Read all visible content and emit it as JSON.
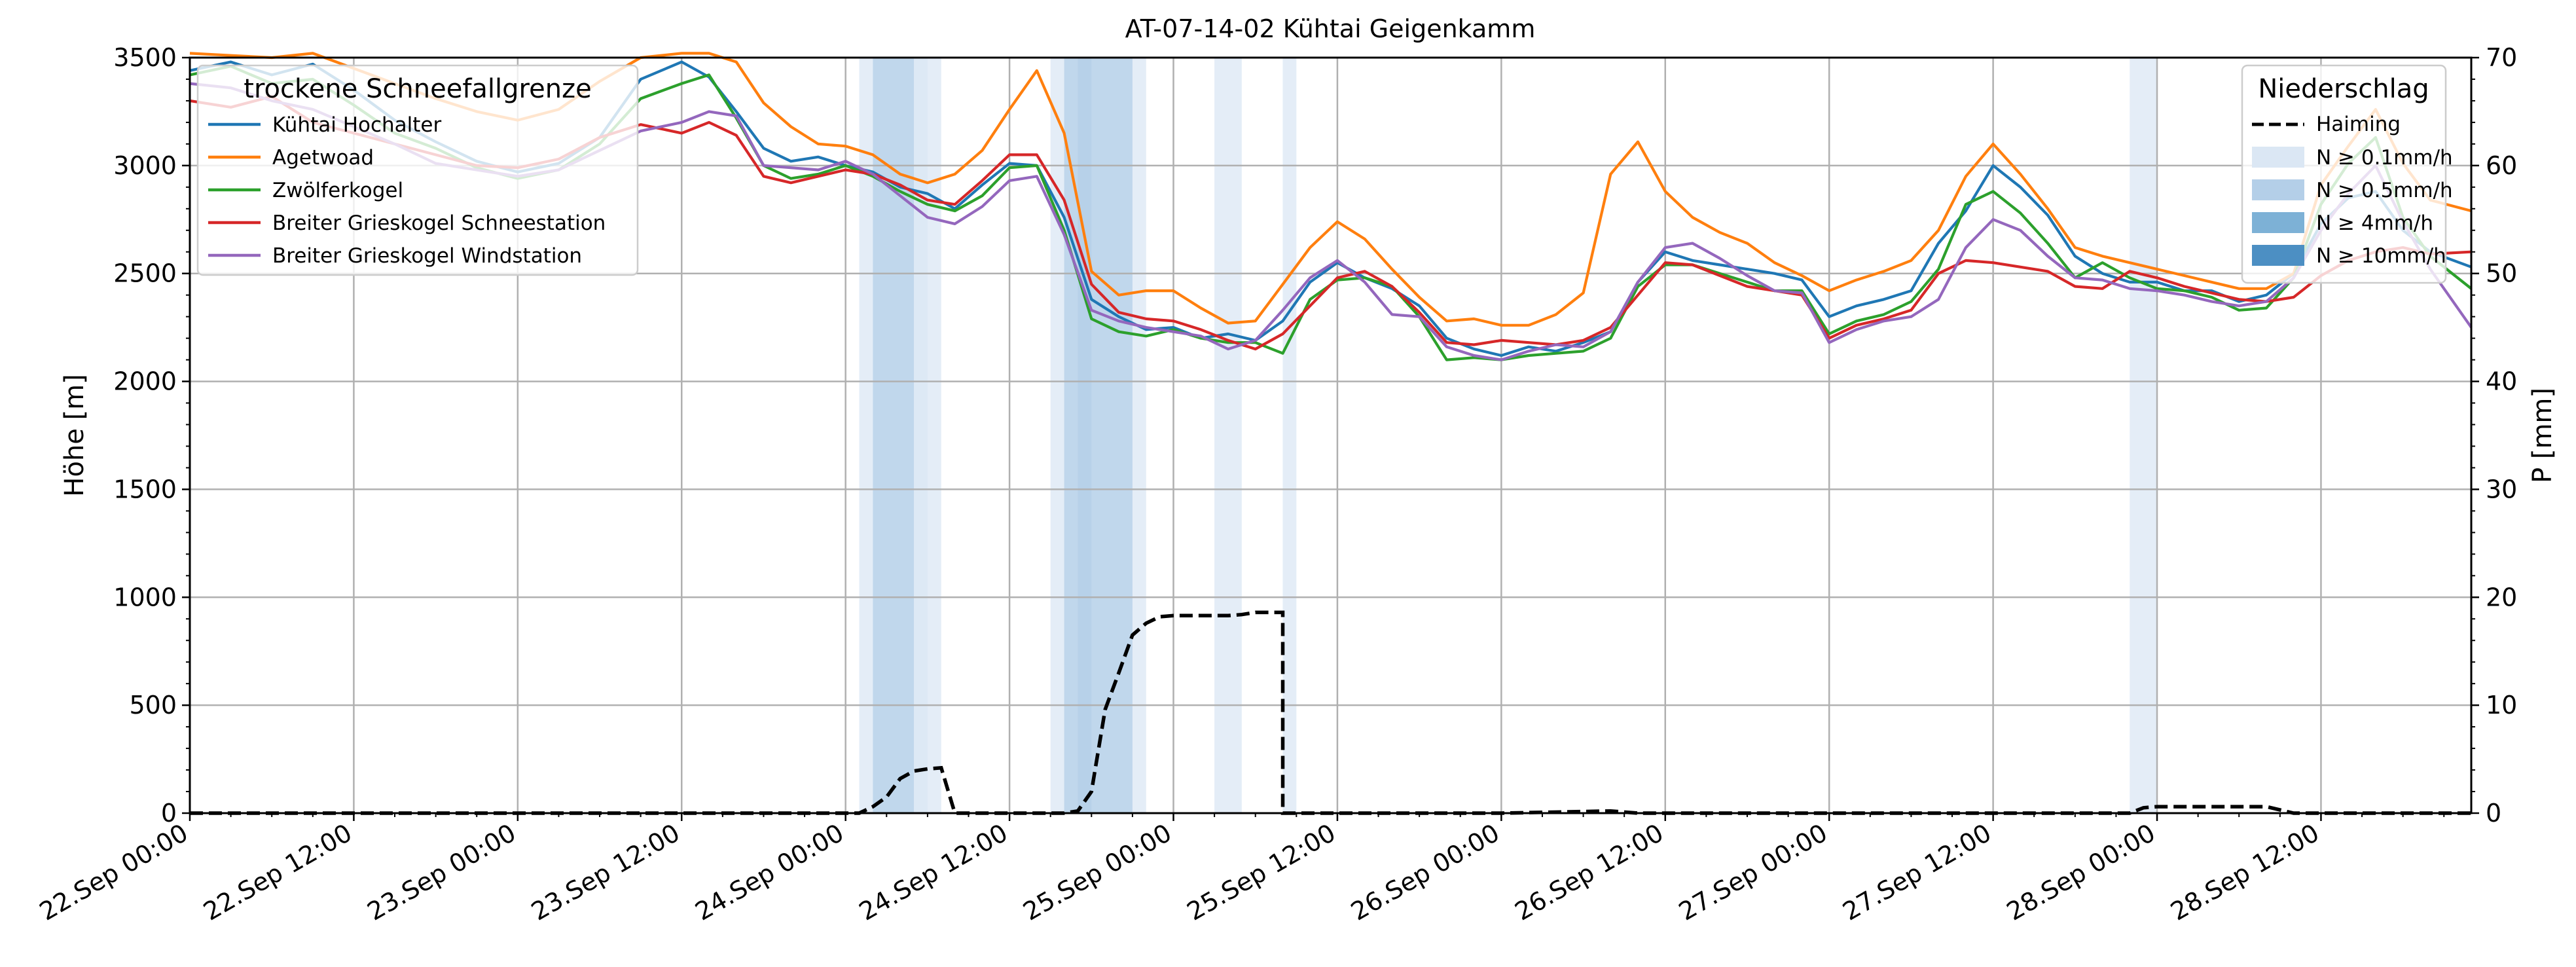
{
  "chart_data": {
    "type": "line",
    "title": "AT-07-14-02 Kühtai Geigenkamm",
    "ylabel_left": "Höhe [m]",
    "ylabel_right": "P [mm]",
    "x_unit": "hours since 22.Sep 00:00",
    "xlim": [
      0,
      167
    ],
    "ylim_left": [
      0,
      3500
    ],
    "ylim_right": [
      0,
      70
    ],
    "left_ticks": [
      0,
      500,
      1000,
      1500,
      2000,
      2500,
      3000,
      3500
    ],
    "right_ticks": [
      0,
      10,
      20,
      30,
      40,
      50,
      60,
      70
    ],
    "x_ticks": [
      {
        "h": 0,
        "label": "22.Sep 00:00"
      },
      {
        "h": 12,
        "label": "22.Sep 12:00"
      },
      {
        "h": 24,
        "label": "23.Sep 00:00"
      },
      {
        "h": 36,
        "label": "23.Sep 12:00"
      },
      {
        "h": 48,
        "label": "24.Sep 00:00"
      },
      {
        "h": 60,
        "label": "24.Sep 12:00"
      },
      {
        "h": 72,
        "label": "25.Sep 00:00"
      },
      {
        "h": 84,
        "label": "25.Sep 12:00"
      },
      {
        "h": 96,
        "label": "26.Sep 00:00"
      },
      {
        "h": 108,
        "label": "26.Sep 12:00"
      },
      {
        "h": 120,
        "label": "27.Sep 00:00"
      },
      {
        "h": 132,
        "label": "27.Sep 12:00"
      },
      {
        "h": 144,
        "label": "28.Sep 00:00"
      },
      {
        "h": 156,
        "label": "28.Sep 12:00"
      }
    ],
    "series_legend_title": "trockene Schneefallgrenze",
    "series": [
      {
        "name": "Kühtai Hochalter",
        "color": "#1f77b4",
        "x": [
          0,
          3,
          6,
          9,
          12,
          15,
          18,
          21,
          24,
          27,
          30,
          33,
          36,
          38,
          40,
          42,
          44,
          46,
          48,
          50,
          52,
          54,
          56,
          58,
          60,
          62,
          64,
          66,
          68,
          70,
          72,
          74,
          76,
          78,
          80,
          82,
          84,
          86,
          88,
          90,
          92,
          94,
          96,
          98,
          100,
          102,
          104,
          106,
          108,
          110,
          112,
          114,
          116,
          118,
          120,
          122,
          124,
          126,
          128,
          130,
          132,
          134,
          136,
          138,
          140,
          142,
          144,
          146,
          148,
          150,
          152,
          154,
          156,
          158,
          160,
          162,
          164,
          167
        ],
        "y": [
          3440,
          3480,
          3420,
          3470,
          3350,
          3210,
          3110,
          3020,
          2970,
          3010,
          3130,
          3400,
          3480,
          3410,
          3250,
          3080,
          3020,
          3040,
          3000,
          2970,
          2900,
          2870,
          2800,
          2910,
          3010,
          3000,
          2760,
          2380,
          2300,
          2240,
          2250,
          2200,
          2220,
          2190,
          2280,
          2460,
          2550,
          2480,
          2430,
          2350,
          2200,
          2150,
          2120,
          2160,
          2140,
          2180,
          2230,
          2460,
          2600,
          2560,
          2540,
          2520,
          2500,
          2470,
          2300,
          2350,
          2380,
          2420,
          2640,
          2790,
          3000,
          2900,
          2770,
          2580,
          2500,
          2460,
          2460,
          2420,
          2420,
          2370,
          2400,
          2500,
          2730,
          2850,
          2880,
          2700,
          2600,
          2530
        ]
      },
      {
        "name": "Agetwoad",
        "color": "#ff7f0e",
        "x": [
          0,
          3,
          6,
          9,
          12,
          15,
          18,
          21,
          24,
          27,
          30,
          33,
          36,
          38,
          40,
          42,
          44,
          46,
          48,
          50,
          52,
          54,
          56,
          58,
          60,
          62,
          64,
          66,
          68,
          70,
          72,
          74,
          76,
          78,
          80,
          82,
          84,
          86,
          88,
          90,
          92,
          94,
          96,
          98,
          100,
          102,
          104,
          106,
          108,
          110,
          112,
          114,
          116,
          118,
          120,
          122,
          124,
          126,
          128,
          130,
          132,
          134,
          136,
          138,
          140,
          142,
          144,
          146,
          148,
          150,
          152,
          154,
          156,
          158,
          160,
          162,
          164,
          167
        ],
        "y": [
          3520,
          3510,
          3500,
          3520,
          3450,
          3380,
          3310,
          3250,
          3210,
          3260,
          3390,
          3500,
          3520,
          3520,
          3480,
          3290,
          3180,
          3100,
          3090,
          3050,
          2960,
          2920,
          2960,
          3070,
          3260,
          3440,
          3150,
          2510,
          2400,
          2420,
          2420,
          2340,
          2270,
          2280,
          2450,
          2620,
          2740,
          2660,
          2520,
          2390,
          2280,
          2290,
          2260,
          2260,
          2310,
          2410,
          2960,
          3110,
          2880,
          2760,
          2690,
          2640,
          2550,
          2490,
          2420,
          2470,
          2510,
          2560,
          2700,
          2950,
          3100,
          2960,
          2800,
          2620,
          2580,
          2550,
          2520,
          2490,
          2460,
          2430,
          2430,
          2500,
          2910,
          3090,
          3260,
          3010,
          2840,
          2790
        ]
      },
      {
        "name": "Zwölferkogel",
        "color": "#2ca02c",
        "x": [
          0,
          3,
          6,
          9,
          12,
          15,
          18,
          21,
          24,
          27,
          30,
          33,
          36,
          38,
          40,
          42,
          44,
          46,
          48,
          50,
          52,
          54,
          56,
          58,
          60,
          62,
          64,
          66,
          68,
          70,
          72,
          74,
          76,
          78,
          80,
          82,
          84,
          86,
          88,
          90,
          92,
          94,
          96,
          98,
          100,
          102,
          104,
          106,
          108,
          110,
          112,
          114,
          116,
          118,
          120,
          122,
          124,
          126,
          128,
          130,
          132,
          134,
          136,
          138,
          140,
          142,
          144,
          146,
          148,
          150,
          152,
          154,
          156,
          158,
          160,
          162,
          164,
          167
        ],
        "y": [
          3420,
          3460,
          3380,
          3400,
          3280,
          3150,
          3080,
          2990,
          2940,
          2980,
          3100,
          3310,
          3380,
          3420,
          3220,
          3000,
          2940,
          2960,
          3000,
          2950,
          2880,
          2820,
          2790,
          2860,
          2990,
          3000,
          2700,
          2290,
          2230,
          2210,
          2240,
          2200,
          2180,
          2180,
          2130,
          2380,
          2470,
          2480,
          2440,
          2300,
          2100,
          2110,
          2100,
          2120,
          2130,
          2140,
          2200,
          2440,
          2540,
          2540,
          2500,
          2460,
          2420,
          2420,
          2220,
          2280,
          2310,
          2370,
          2520,
          2820,
          2880,
          2780,
          2640,
          2480,
          2550,
          2480,
          2430,
          2420,
          2390,
          2330,
          2340,
          2480,
          2820,
          3010,
          3130,
          2760,
          2580,
          2430
        ]
      },
      {
        "name": "Breiter Grieskogel Schneestation",
        "color": "#d62728",
        "x": [
          0,
          3,
          6,
          9,
          12,
          15,
          18,
          21,
          24,
          27,
          30,
          33,
          36,
          38,
          40,
          42,
          44,
          46,
          48,
          50,
          52,
          54,
          56,
          58,
          60,
          62,
          64,
          66,
          68,
          70,
          72,
          74,
          76,
          78,
          80,
          82,
          84,
          86,
          88,
          90,
          92,
          94,
          96,
          98,
          100,
          102,
          104,
          106,
          108,
          110,
          112,
          114,
          116,
          118,
          120,
          122,
          124,
          126,
          128,
          130,
          132,
          134,
          136,
          138,
          140,
          142,
          144,
          146,
          148,
          150,
          152,
          154,
          156,
          158,
          160,
          162,
          164,
          167
        ],
        "y": [
          3300,
          3270,
          3320,
          3200,
          3150,
          3100,
          3050,
          3000,
          2990,
          3030,
          3130,
          3190,
          3150,
          3200,
          3140,
          2950,
          2920,
          2950,
          2980,
          2960,
          2910,
          2840,
          2820,
          2930,
          3050,
          3050,
          2840,
          2450,
          2320,
          2290,
          2280,
          2240,
          2190,
          2150,
          2220,
          2350,
          2480,
          2510,
          2440,
          2320,
          2180,
          2170,
          2190,
          2180,
          2170,
          2190,
          2250,
          2400,
          2550,
          2540,
          2490,
          2440,
          2420,
          2400,
          2200,
          2260,
          2290,
          2330,
          2500,
          2560,
          2550,
          2530,
          2510,
          2440,
          2430,
          2510,
          2480,
          2440,
          2410,
          2380,
          2370,
          2390,
          2490,
          2560,
          2600,
          2620,
          2590,
          2600
        ]
      },
      {
        "name": "Breiter Grieskogel Windstation",
        "color": "#9467bd",
        "x": [
          0,
          3,
          6,
          9,
          12,
          15,
          18,
          21,
          24,
          27,
          30,
          33,
          36,
          38,
          40,
          42,
          44,
          46,
          48,
          50,
          52,
          54,
          56,
          58,
          60,
          62,
          64,
          66,
          68,
          70,
          72,
          74,
          76,
          78,
          80,
          82,
          84,
          86,
          88,
          90,
          92,
          94,
          96,
          98,
          100,
          102,
          104,
          106,
          108,
          110,
          112,
          114,
          116,
          118,
          120,
          122,
          124,
          126,
          128,
          130,
          132,
          134,
          136,
          138,
          140,
          142,
          144,
          146,
          148,
          150,
          152,
          154,
          156,
          158,
          160,
          162,
          164,
          167
        ],
        "y": [
          3380,
          3360,
          3300,
          3260,
          3180,
          3100,
          3010,
          2980,
          2950,
          2980,
          3070,
          3160,
          3200,
          3250,
          3230,
          3000,
          2990,
          2980,
          3020,
          2960,
          2860,
          2760,
          2730,
          2810,
          2930,
          2950,
          2680,
          2330,
          2280,
          2250,
          2230,
          2210,
          2150,
          2190,
          2330,
          2480,
          2560,
          2460,
          2310,
          2300,
          2160,
          2120,
          2100,
          2140,
          2170,
          2160,
          2230,
          2460,
          2620,
          2640,
          2570,
          2490,
          2420,
          2410,
          2180,
          2240,
          2280,
          2300,
          2380,
          2620,
          2750,
          2700,
          2580,
          2480,
          2470,
          2430,
          2420,
          2400,
          2370,
          2350,
          2370,
          2480,
          2700,
          2870,
          3000,
          2740,
          2520,
          2250
        ]
      }
    ],
    "precip_legend_title": "Niederschlag",
    "precip_series": {
      "name": "Haiming",
      "color": "#000000",
      "style": "dashed",
      "x": [
        0,
        49,
        50,
        51,
        52,
        53,
        54,
        55,
        56,
        64,
        65,
        66,
        67,
        68,
        69,
        70,
        71,
        72,
        73,
        74,
        75,
        76,
        77,
        78,
        79,
        80,
        96,
        104,
        106,
        142,
        143,
        144,
        146,
        148,
        150,
        152,
        154,
        167
      ],
      "y": [
        0,
        0,
        0.6,
        1.5,
        3.2,
        3.9,
        4.1,
        4.2,
        0,
        0,
        0.2,
        2.0,
        9.6,
        13.0,
        16.5,
        17.6,
        18.2,
        18.3,
        18.3,
        18.3,
        18.3,
        18.3,
        18.4,
        18.6,
        18.6,
        18.6,
        0,
        0.2,
        0,
        0,
        0.5,
        0.6,
        0.6,
        0.6,
        0.6,
        0.6,
        0,
        0
      ],
      "drops": [
        [
          56,
          4.2,
          0
        ],
        [
          80,
          18.6,
          0
        ]
      ]
    },
    "intensity_levels": [
      {
        "label": "N ≥ 0.1mm/h",
        "color": "#dbe7f4"
      },
      {
        "label": "N ≥ 0.5mm/h",
        "color": "#b4cfe8"
      },
      {
        "label": "N ≥ 4mm/h",
        "color": "#7db1d6"
      },
      {
        "label": "N ≥ 10mm/h",
        "color": "#4c8fc3"
      }
    ],
    "intensity_bands": [
      {
        "x0": 49,
        "x1": 54,
        "level": 0
      },
      {
        "x0": 50,
        "x1": 53,
        "level": 1
      },
      {
        "x0": 53,
        "x1": 54,
        "level": 0
      },
      {
        "x0": 54,
        "x1": 55,
        "level": 0
      },
      {
        "x0": 63,
        "x1": 70,
        "level": 0
      },
      {
        "x0": 64,
        "x1": 69,
        "level": 1
      },
      {
        "x0": 65,
        "x1": 66,
        "level": 1
      },
      {
        "x0": 75,
        "x1": 77,
        "level": 0
      },
      {
        "x0": 80,
        "x1": 81,
        "level": 0
      },
      {
        "x0": 142,
        "x1": 144,
        "level": 0
      }
    ]
  }
}
